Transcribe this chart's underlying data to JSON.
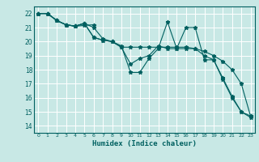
{
  "xlabel": "Humidex (Indice chaleur)",
  "ylabel": "",
  "background_color": "#c8e8e5",
  "grid_color": "#ffffff",
  "line_color": "#006060",
  "xlim": [
    -0.5,
    23.5
  ],
  "ylim": [
    13.5,
    22.5
  ],
  "xticks": [
    0,
    1,
    2,
    3,
    4,
    5,
    6,
    7,
    8,
    9,
    10,
    11,
    12,
    13,
    14,
    15,
    16,
    17,
    18,
    19,
    20,
    21,
    22,
    23
  ],
  "yticks": [
    14,
    15,
    16,
    17,
    18,
    19,
    20,
    21,
    22
  ],
  "series": [
    {
      "x": [
        0,
        1,
        2,
        3,
        4,
        5,
        6
      ],
      "y": [
        22,
        22,
        21.5,
        21.2,
        21.1,
        21.15,
        21.2
      ]
    },
    {
      "x": [
        0,
        1,
        2,
        3,
        4,
        5,
        6,
        7,
        8,
        9,
        10,
        11,
        12,
        13,
        14,
        15,
        16,
        17,
        18,
        19,
        20,
        21,
        22,
        23
      ],
      "y": [
        22,
        22,
        21.5,
        21.2,
        21.1,
        21.3,
        21.0,
        20.2,
        20.0,
        19.7,
        17.8,
        17.8,
        18.8,
        19.5,
        21.4,
        19.5,
        21.0,
        21.0,
        18.7,
        18.7,
        17.3,
        16.0,
        15.0,
        14.6
      ]
    },
    {
      "x": [
        0,
        1,
        2,
        3,
        4,
        5,
        6,
        7,
        8,
        9,
        10,
        11,
        12,
        13,
        14,
        15,
        16,
        17,
        18,
        19,
        20,
        21,
        22,
        23
      ],
      "y": [
        22,
        22,
        21.5,
        21.2,
        21.1,
        21.3,
        20.3,
        20.1,
        20.0,
        19.6,
        18.4,
        18.8,
        19.0,
        19.7,
        19.5,
        19.5,
        19.5,
        19.5,
        19.0,
        18.7,
        17.4,
        16.1,
        15.0,
        14.7
      ]
    },
    {
      "x": [
        0,
        1,
        2,
        3,
        4,
        5,
        6,
        7,
        8,
        9,
        10,
        11,
        12,
        13,
        14,
        15,
        16,
        17,
        18,
        19,
        20,
        21,
        22,
        23
      ],
      "y": [
        22,
        22,
        21.5,
        21.2,
        21.1,
        21.3,
        20.3,
        20.1,
        20.0,
        19.6,
        19.6,
        19.6,
        19.6,
        19.6,
        19.6,
        19.6,
        19.6,
        19.5,
        19.3,
        19.0,
        18.6,
        18.0,
        17.0,
        14.7
      ]
    }
  ]
}
